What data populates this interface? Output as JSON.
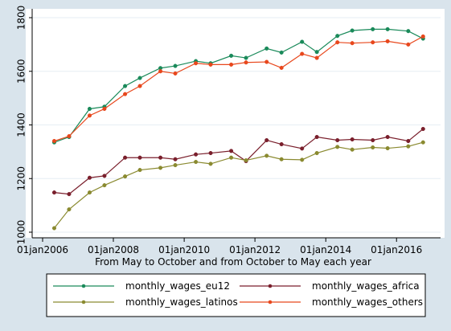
{
  "chart_data": {
    "type": "line",
    "xlabel": "From May to October and from October to May each year",
    "ylabel": "",
    "x_ticks": [
      "01jan2006",
      "01jan2008",
      "01jan2010",
      "01jan2012",
      "01jan2014",
      "01jan2016"
    ],
    "y_ticks": [
      "1000",
      "1200",
      "1400",
      "1600",
      "1800"
    ],
    "ylim": [
      1000,
      1800
    ],
    "grid": "horizontal",
    "legend_position": "bottom",
    "x": [
      "2006-05-01",
      "2006-10-01",
      "2007-05-01",
      "2007-10-01",
      "2008-05-01",
      "2008-10-01",
      "2009-05-01",
      "2009-10-01",
      "2010-05-01",
      "2010-10-01",
      "2011-05-01",
      "2011-10-01",
      "2012-05-01",
      "2012-10-01",
      "2013-05-01",
      "2013-10-01",
      "2014-05-01",
      "2014-10-01",
      "2015-05-01",
      "2015-10-01",
      "2016-05-01",
      "2016-10-01"
    ],
    "series": [
      {
        "name": "monthly_wages_eu12",
        "color": "#1a8a5a",
        "values": [
          1335,
          1355,
          1460,
          1468,
          1545,
          1575,
          1612,
          1620,
          1638,
          1630,
          1658,
          1650,
          1685,
          1670,
          1710,
          1672,
          1732,
          1752,
          1757,
          1757,
          1750,
          1722
        ]
      },
      {
        "name": "monthly_wages_africa",
        "color": "#7a1f2c",
        "values": [
          1148,
          1142,
          1203,
          1210,
          1278,
          1278,
          1278,
          1272,
          1290,
          1295,
          1303,
          1265,
          1343,
          1328,
          1312,
          1355,
          1343,
          1346,
          1343,
          1355,
          1340,
          1385
        ]
      },
      {
        "name": "monthly_wages_latinos",
        "color": "#8a8a30",
        "values": [
          1015,
          1085,
          1148,
          1175,
          1208,
          1232,
          1240,
          1250,
          1262,
          1255,
          1278,
          1268,
          1285,
          1272,
          1270,
          1295,
          1318,
          1308,
          1316,
          1313,
          1320,
          1335
        ]
      },
      {
        "name": "monthly_wages_others",
        "color": "#e8471c",
        "values": [
          1340,
          1358,
          1435,
          1460,
          1515,
          1545,
          1600,
          1592,
          1630,
          1625,
          1625,
          1633,
          1635,
          1613,
          1665,
          1650,
          1708,
          1705,
          1708,
          1712,
          1700,
          1730
        ]
      }
    ]
  }
}
